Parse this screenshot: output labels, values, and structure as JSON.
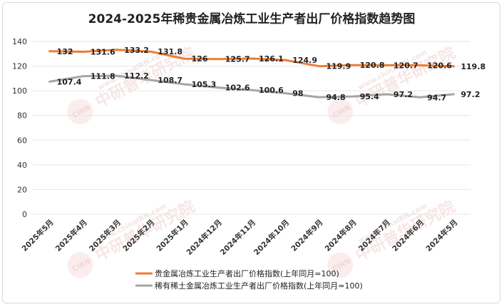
{
  "chart_data": {
    "type": "line",
    "title": "2024-2025年稀贵金属冶炼工业生产者出厂价格指数趋势图",
    "categories": [
      "2025年5月",
      "2025年4月",
      "2025年3月",
      "2025年2月",
      "2025年1月",
      "2024年12月",
      "2024年11月",
      "2024年10月",
      "2024年9月",
      "2024年8月",
      "2024年7月",
      "2024年6月",
      "2024年5月"
    ],
    "ylim": [
      0,
      140
    ],
    "yticks": [
      0,
      20,
      40,
      60,
      80,
      100,
      120,
      140
    ],
    "grid": true,
    "legend_position": "bottom-left",
    "series": [
      {
        "name": "贵金属冶炼工业生产者出厂价格指数(上年同月=100)",
        "color": "#ed7d31",
        "values": [
          132,
          131.6,
          133.2,
          131.8,
          126,
          125.7,
          126.1,
          124.9,
          119.9,
          120.8,
          120.7,
          120.6,
          119.8
        ],
        "labels": [
          "132",
          "131.6",
          "133.2",
          "131.8",
          "126",
          "125.7",
          "126.1",
          "124.9",
          "119.9",
          "120.8",
          "120.7",
          "120.6",
          "119.8"
        ]
      },
      {
        "name": "稀有稀土金属冶炼工业生产者出厂价格指数(上年同月=100)",
        "color": "#a5a5a5",
        "values": [
          107.4,
          111.8,
          112.2,
          108.7,
          105.3,
          102.6,
          100.6,
          98,
          94.8,
          95.4,
          97.2,
          94.7,
          97.2
        ],
        "labels": [
          "107.4",
          "111.8",
          "112.2",
          "108.7",
          "105.3",
          "102.6",
          "100.6",
          "98",
          "94.8",
          "95.4",
          "97.2",
          "94.7",
          "97.2"
        ]
      }
    ]
  },
  "watermark": {
    "text": "中研普华研究院",
    "sub": "www.chinaIRN.com",
    "logo": "CIRN"
  }
}
